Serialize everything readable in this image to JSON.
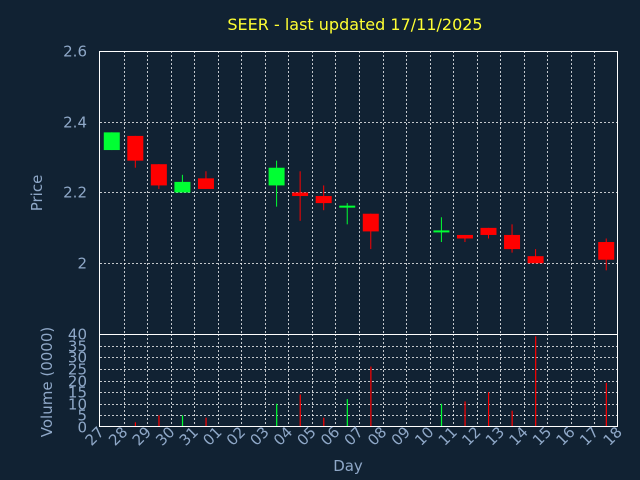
{
  "chart_data": {
    "type": "candlestick",
    "title": "SEER - last updated 17/11/2025",
    "xlabel": "Day",
    "ylabel": "Price",
    "volume_label": "Volume (0000)",
    "grid": true,
    "colors": {
      "background": "#112233",
      "up": "#00ff33",
      "down": "#ff0000",
      "title": "#ffff33",
      "axis_text": "#8fa8c8",
      "grid": "#ffffff"
    },
    "price_axis": {
      "ylim": [
        1.8,
        2.6
      ],
      "ticks": [
        "2",
        "2.2",
        "2.4",
        "2.6"
      ],
      "tick_values": [
        2.0,
        2.2,
        2.4,
        2.6
      ]
    },
    "volume_axis": {
      "ylim": [
        0,
        40
      ],
      "ticks": [
        "0",
        "5",
        "10",
        "15",
        "20",
        "25",
        "30",
        "35",
        "40"
      ],
      "tick_values": [
        0,
        5,
        10,
        15,
        20,
        25,
        30,
        35,
        40
      ]
    },
    "x_ticks": [
      "27",
      "28",
      "29",
      "30",
      "31",
      "01",
      "02",
      "03",
      "04",
      "05",
      "06",
      "07",
      "08",
      "09",
      "10",
      "11",
      "12",
      "13",
      "14",
      "15",
      "16",
      "17",
      "18"
    ],
    "candles": [
      {
        "day": "27",
        "open": 2.32,
        "high": 2.37,
        "low": 2.32,
        "close": 2.37,
        "volume": 0
      },
      {
        "day": "28",
        "open": 2.36,
        "high": 2.36,
        "low": 2.27,
        "close": 2.29,
        "volume": 2
      },
      {
        "day": "29",
        "open": 2.28,
        "high": 2.28,
        "low": 2.21,
        "close": 2.22,
        "volume": 5
      },
      {
        "day": "30",
        "open": 2.2,
        "high": 2.25,
        "low": 2.2,
        "close": 2.23,
        "volume": 5
      },
      {
        "day": "31",
        "open": 2.24,
        "high": 2.26,
        "low": 2.21,
        "close": 2.21,
        "volume": 4
      },
      {
        "day": "03",
        "open": 2.22,
        "high": 2.29,
        "low": 2.16,
        "close": 2.27,
        "volume": 10
      },
      {
        "day": "04",
        "open": 2.2,
        "high": 2.26,
        "low": 2.12,
        "close": 2.19,
        "volume": 14
      },
      {
        "day": "05",
        "open": 2.19,
        "high": 2.22,
        "low": 2.15,
        "close": 2.17,
        "volume": 4
      },
      {
        "day": "06",
        "open": 2.16,
        "high": 2.17,
        "low": 2.11,
        "close": 2.16,
        "volume": 12
      },
      {
        "day": "07",
        "open": 2.14,
        "high": 2.14,
        "low": 2.04,
        "close": 2.09,
        "volume": 26
      },
      {
        "day": "10",
        "open": 2.09,
        "high": 2.13,
        "low": 2.06,
        "close": 2.09,
        "volume": 10
      },
      {
        "day": "11",
        "open": 2.08,
        "high": 2.08,
        "low": 2.06,
        "close": 2.07,
        "volume": 11
      },
      {
        "day": "12",
        "open": 2.1,
        "high": 2.1,
        "low": 2.07,
        "close": 2.08,
        "volume": 15
      },
      {
        "day": "13",
        "open": 2.08,
        "high": 2.11,
        "low": 2.03,
        "close": 2.04,
        "volume": 7
      },
      {
        "day": "14",
        "open": 2.02,
        "high": 2.04,
        "low": 2.0,
        "close": 2.0,
        "volume": 39
      },
      {
        "day": "17",
        "open": 2.06,
        "high": 2.07,
        "low": 1.98,
        "close": 2.01,
        "volume": 19
      }
    ]
  }
}
